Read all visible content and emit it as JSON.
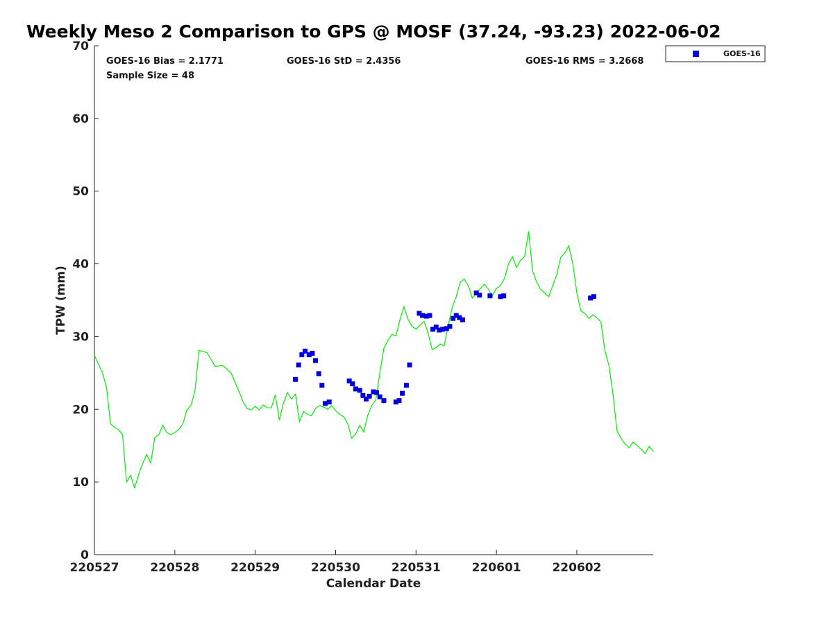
{
  "chart_data": {
    "type": "line",
    "title": "Weekly Meso 2 Comparison to GPS @ MOSF (37.24, -93.23) 2022-06-02",
    "xlabel": "Calendar Date",
    "ylabel": "TPW (mm)",
    "xlim": [
      0,
      6.95
    ],
    "ylim": [
      0,
      70
    ],
    "grid": false,
    "legend_position": "top-right (outside plot)",
    "x_ticks": [
      0,
      1,
      2,
      3,
      4,
      5,
      6
    ],
    "x_tick_labels": [
      "220527",
      "220528",
      "220529",
      "220530",
      "220531",
      "220601",
      "220602"
    ],
    "y_ticks": [
      0,
      10,
      20,
      30,
      40,
      50,
      60,
      70
    ],
    "y_tick_labels": [
      "0",
      "10",
      "20",
      "30",
      "40",
      "50",
      "60",
      "70"
    ],
    "stats": {
      "bias": "GOES-16 Bias = 2.1771",
      "std": "GOES-16 StD = 2.4356",
      "rms": "GOES-16 RMS = 3.2668",
      "sample": "Sample Size = 48"
    },
    "series": [
      {
        "kind": "line",
        "color": "#00ee00",
        "x": [
          0.0,
          0.05,
          0.1,
          0.15,
          0.2,
          0.25,
          0.3,
          0.35,
          0.4,
          0.45,
          0.5,
          0.55,
          0.58,
          0.6,
          0.65,
          0.7,
          0.75,
          0.8,
          0.85,
          0.9,
          0.95,
          1.0,
          1.05,
          1.1,
          1.15,
          1.2,
          1.25,
          1.3,
          1.4,
          1.5,
          1.6,
          1.7,
          1.8,
          1.85,
          1.9,
          1.95,
          2.0,
          2.05,
          2.1,
          2.15,
          2.2,
          2.25,
          2.3,
          2.35,
          2.4,
          2.45,
          2.5,
          2.55,
          2.6,
          2.65,
          2.7,
          2.75,
          2.8,
          2.85,
          2.9,
          2.95,
          3.0,
          3.05,
          3.1,
          3.15,
          3.2,
          3.25,
          3.3,
          3.35,
          3.4,
          3.45,
          3.5,
          3.55,
          3.6,
          3.65,
          3.7,
          3.75,
          3.8,
          3.85,
          3.9,
          3.95,
          4.0,
          4.05,
          4.1,
          4.15,
          4.2,
          4.25,
          4.3,
          4.35,
          4.4,
          4.45,
          4.5,
          4.55,
          4.6,
          4.65,
          4.7,
          4.75,
          4.8,
          4.85,
          4.9,
          4.95,
          5.0,
          5.05,
          5.1,
          5.15,
          5.2,
          5.25,
          5.3,
          5.35,
          5.4,
          5.45,
          5.5,
          5.55,
          5.6,
          5.65,
          5.7,
          5.75,
          5.8,
          5.85,
          5.9,
          5.95,
          6.0,
          6.05,
          6.1,
          6.15,
          6.2,
          6.25,
          6.3,
          6.35,
          6.4,
          6.45,
          6.5,
          6.55,
          6.6,
          6.65,
          6.7,
          6.75,
          6.8,
          6.85,
          6.9,
          6.95
        ],
        "y": [
          27.4,
          26.2,
          25.0,
          23.0,
          18.0,
          17.5,
          17.2,
          16.5,
          10.0,
          10.9,
          9.2,
          11.0,
          12.0,
          12.5,
          13.8,
          12.6,
          16.1,
          16.5,
          17.8,
          16.8,
          16.5,
          16.8,
          17.2,
          18.0,
          19.9,
          20.5,
          22.5,
          28.1,
          27.8,
          25.9,
          26.0,
          25.0,
          22.4,
          21.0,
          20.1,
          19.9,
          20.4,
          19.9,
          20.6,
          20.2,
          20.2,
          22.0,
          18.5,
          20.8,
          22.3,
          21.4,
          22.1,
          18.3,
          19.7,
          19.3,
          19.1,
          20.1,
          20.5,
          20.3,
          20.0,
          20.5,
          19.8,
          19.3,
          19.0,
          18.0,
          16.0,
          16.6,
          17.8,
          16.9,
          19.2,
          20.5,
          21.3,
          25.0,
          28.4,
          29.5,
          30.3,
          30.1,
          32.3,
          34.1,
          32.4,
          31.4,
          31.0,
          31.6,
          32.1,
          30.5,
          28.2,
          28.5,
          29.0,
          28.7,
          31.5,
          34.0,
          35.5,
          37.5,
          37.9,
          37.0,
          35.3,
          36.0,
          36.6,
          37.2,
          36.5,
          35.6,
          36.6,
          37.0,
          38.0,
          40.0,
          41.0,
          39.5,
          40.5,
          41.0,
          44.5,
          39.0,
          37.5,
          36.5,
          36.0,
          35.5,
          37.0,
          38.5,
          40.9,
          41.5,
          42.5,
          40.0,
          36.0,
          33.5,
          33.2,
          32.5,
          33.0,
          32.6,
          32.0,
          28.0,
          26.0,
          22.0,
          17.0,
          16.0,
          15.2,
          14.7,
          15.5,
          15.0,
          14.5,
          13.9,
          14.9,
          14.2
        ]
      },
      {
        "name": "GOES-16",
        "kind": "scatter",
        "marker": "square",
        "color": "#0000dd",
        "x": [
          2.5,
          2.54,
          2.58,
          2.62,
          2.67,
          2.71,
          2.75,
          2.79,
          2.83,
          2.87,
          2.92,
          3.17,
          3.21,
          3.25,
          3.3,
          3.34,
          3.38,
          3.42,
          3.47,
          3.51,
          3.55,
          3.6,
          3.75,
          3.79,
          3.83,
          3.88,
          3.92,
          4.04,
          4.08,
          4.13,
          4.17,
          4.21,
          4.25,
          4.29,
          4.33,
          4.38,
          4.42,
          4.46,
          4.5,
          4.54,
          4.58,
          4.75,
          4.79,
          4.92,
          5.05,
          5.09,
          6.17,
          6.21
        ],
        "y": [
          24.1,
          26.1,
          27.5,
          28.0,
          27.5,
          27.7,
          26.7,
          24.9,
          23.3,
          20.8,
          21.0,
          23.9,
          23.5,
          22.8,
          22.6,
          21.9,
          21.4,
          21.8,
          22.4,
          22.3,
          21.7,
          21.2,
          21.0,
          21.2,
          22.2,
          23.3,
          26.1,
          33.2,
          32.9,
          32.8,
          32.9,
          31.0,
          31.3,
          30.9,
          31.0,
          31.1,
          31.4,
          32.5,
          32.9,
          32.6,
          32.3,
          36.0,
          35.7,
          35.6,
          35.5,
          35.6,
          35.3,
          35.5
        ]
      }
    ]
  }
}
